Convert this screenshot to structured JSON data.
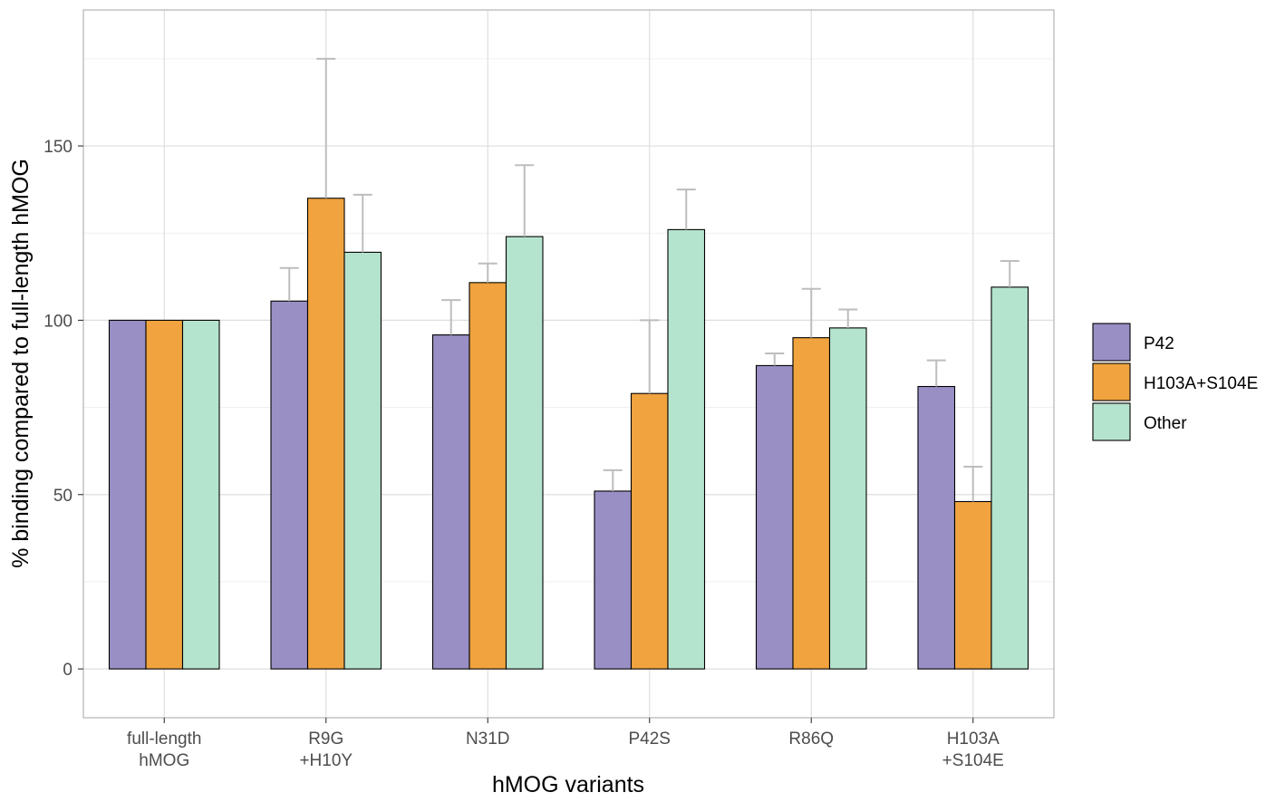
{
  "chart_data": {
    "type": "bar",
    "title": "",
    "xlabel": "hMOG variants",
    "ylabel": "% binding compared to full-length hMOG",
    "ylim": [
      -14,
      189
    ],
    "yticks": [
      0,
      50,
      100,
      150
    ],
    "grid": true,
    "legend_position": "right",
    "categories": [
      [
        "full-length",
        "hMOG"
      ],
      [
        "R9G",
        "+H10Y"
      ],
      [
        "N31D"
      ],
      [
        "P42S"
      ],
      [
        "R86Q"
      ],
      [
        "H103A",
        "+S104E"
      ]
    ],
    "series": [
      {
        "name": "P42",
        "color": "#9a8fc5",
        "values": [
          100,
          105.5,
          95.8,
          51,
          87,
          81
        ],
        "errors": [
          0,
          9.5,
          10,
          6,
          3.5,
          7.5
        ]
      },
      {
        "name": "H103A+S104E",
        "color": "#f0a33f",
        "values": [
          100,
          135,
          110.8,
          79,
          95,
          48
        ],
        "errors": [
          0,
          40,
          5.5,
          21,
          14,
          10
        ]
      },
      {
        "name": "Other",
        "color": "#b5e4ce",
        "values": [
          100,
          119.5,
          124,
          126,
          97.8,
          109.5
        ],
        "errors": [
          0,
          16.5,
          20.5,
          11.5,
          5.3,
          7.5
        ]
      }
    ]
  }
}
